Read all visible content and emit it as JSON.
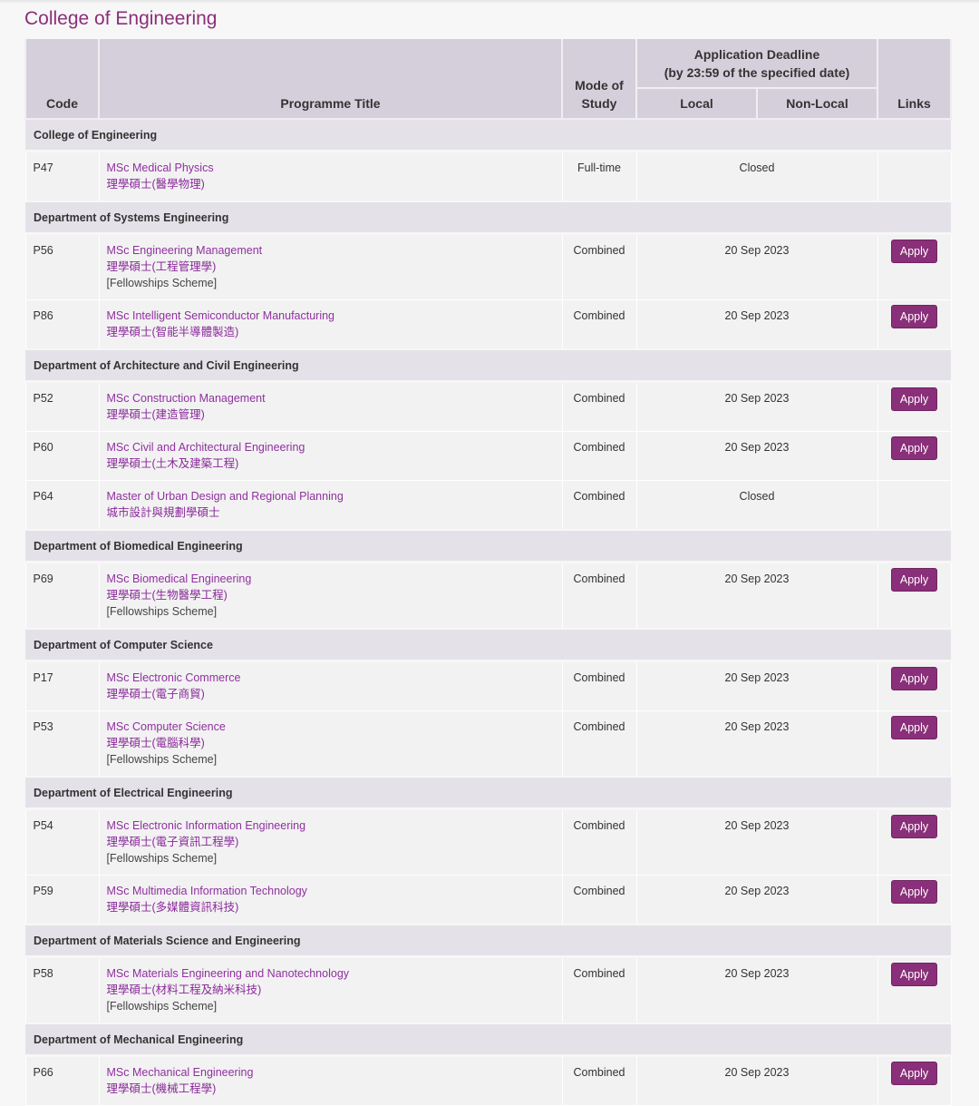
{
  "page_title": "College of Engineering",
  "accent_color": "#8a2f79",
  "headers": {
    "code": "Code",
    "title": "Programme Title",
    "mode": "Mode of Study",
    "deadline": "Application Deadline",
    "deadline_note": "(by 23:59 of the specified date)",
    "local": "Local",
    "non_local": "Non-Local",
    "links": "Links"
  },
  "groups": [
    {
      "name": "College of Engineering",
      "programmes": [
        {
          "code": "P47",
          "title_en": "MSc Medical Physics",
          "title_zh": "理學碩士(醫學物理)",
          "note": "",
          "mode": "Full-time",
          "deadline": "Closed",
          "apply": ""
        }
      ]
    },
    {
      "name": "Department of Systems Engineering",
      "programmes": [
        {
          "code": "P56",
          "title_en": "MSc Engineering Management",
          "title_zh": "理學碩士(工程管理學)",
          "note": "[Fellowships Scheme]",
          "mode": "Combined",
          "deadline": "20 Sep 2023",
          "apply": "Apply"
        },
        {
          "code": "P86",
          "title_en": "MSc Intelligent Semiconductor Manufacturing",
          "title_zh": "理學碩士(智能半導體製造)",
          "note": "",
          "mode": "Combined",
          "deadline": "20 Sep 2023",
          "apply": "Apply"
        }
      ]
    },
    {
      "name": "Department of Architecture and Civil Engineering",
      "programmes": [
        {
          "code": "P52",
          "title_en": "MSc Construction Management",
          "title_zh": "理學碩士(建造管理)",
          "note": "",
          "mode": "Combined",
          "deadline": "20 Sep 2023",
          "apply": "Apply"
        },
        {
          "code": "P60",
          "title_en": "MSc Civil and Architectural Engineering",
          "title_zh": "理學碩士(土木及建築工程)",
          "note": "",
          "mode": "Combined",
          "deadline": "20 Sep 2023",
          "apply": "Apply"
        },
        {
          "code": "P64",
          "title_en": "Master of Urban Design and Regional Planning",
          "title_zh": "城市設計與規劃學碩士",
          "note": "",
          "mode": "Combined",
          "deadline": "Closed",
          "apply": ""
        }
      ]
    },
    {
      "name": "Department of Biomedical Engineering",
      "programmes": [
        {
          "code": "P69",
          "title_en": "MSc Biomedical Engineering",
          "title_zh": "理學碩士(生物醫學工程)",
          "note": "[Fellowships Scheme]",
          "mode": "Combined",
          "deadline": "20 Sep 2023",
          "apply": "Apply"
        }
      ]
    },
    {
      "name": "Department of Computer Science",
      "programmes": [
        {
          "code": "P17",
          "title_en": "MSc Electronic Commerce",
          "title_zh": "理學碩士(電子商貿)",
          "note": "",
          "mode": "Combined",
          "deadline": "20 Sep 2023",
          "apply": "Apply"
        },
        {
          "code": "P53",
          "title_en": "MSc Computer Science",
          "title_zh": "理學碩士(電腦科學)",
          "note": "[Fellowships Scheme]",
          "mode": "Combined",
          "deadline": "20 Sep 2023",
          "apply": "Apply"
        }
      ]
    },
    {
      "name": "Department of Electrical Engineering",
      "programmes": [
        {
          "code": "P54",
          "title_en": "MSc Electronic Information Engineering",
          "title_zh": "理學碩士(電子資訊工程學)",
          "note": "[Fellowships Scheme]",
          "mode": "Combined",
          "deadline": "20 Sep 2023",
          "apply": "Apply"
        },
        {
          "code": "P59",
          "title_en": "MSc Multimedia Information Technology",
          "title_zh": "理學碩士(多媒體資訊科技)",
          "note": "",
          "mode": "Combined",
          "deadline": "20 Sep 2023",
          "apply": "Apply"
        }
      ]
    },
    {
      "name": "Department of Materials Science and Engineering",
      "programmes": [
        {
          "code": "P58",
          "title_en": "MSc Materials Engineering and Nanotechnology",
          "title_zh": "理學碩士(材料工程及納米科技)",
          "note": "[Fellowships Scheme]",
          "mode": "Combined",
          "deadline": "20 Sep 2023",
          "apply": "Apply"
        }
      ]
    },
    {
      "name": "Department of Mechanical Engineering",
      "programmes": [
        {
          "code": "P66",
          "title_en": "MSc Mechanical Engineering",
          "title_zh": "理學碩士(機械工程學)",
          "note": "",
          "mode": "Combined",
          "deadline": "20 Sep 2023",
          "apply": "Apply"
        }
      ]
    }
  ]
}
